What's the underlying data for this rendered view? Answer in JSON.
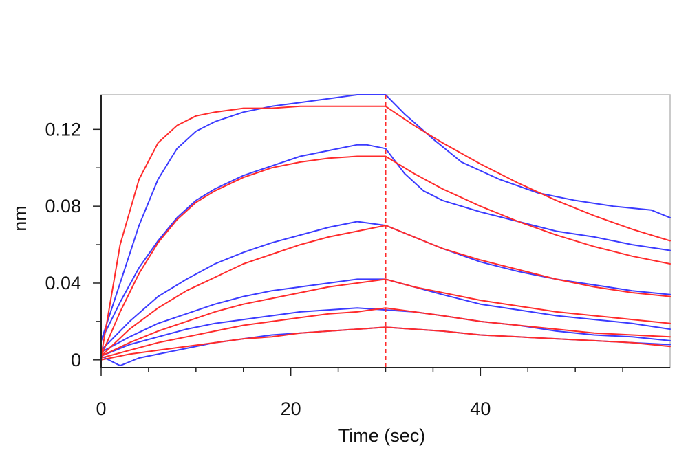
{
  "chart_data": {
    "type": "line",
    "title": "",
    "xlabel": "Time (sec)",
    "ylabel": "nm",
    "xlim": [
      0,
      60
    ],
    "ylim": [
      -0.004,
      0.138
    ],
    "x_ticks": [
      {
        "value": 0,
        "label": "0"
      },
      {
        "value": 20,
        "label": "20"
      },
      {
        "value": 40,
        "label": "40"
      }
    ],
    "y_ticks": [
      {
        "value": 0,
        "label": "0"
      },
      {
        "value": 0.04,
        "label": "0.04"
      },
      {
        "value": 0.08,
        "label": "0.08"
      },
      {
        "value": 0.12,
        "label": "0.12"
      }
    ],
    "x_minor_step": 5,
    "y_minor_step": 0.02,
    "grid": false,
    "dissociation_start": 30,
    "colors": {
      "measured": "#3b3bff",
      "fit": "#ff2b2b",
      "axis": "#222222",
      "frame": "#b8b8b8"
    },
    "series": [
      {
        "kind": "measured",
        "x": [
          0,
          2,
          4,
          6,
          8,
          10,
          12,
          15,
          18,
          21,
          24,
          27,
          28,
          30,
          32,
          35,
          38,
          42,
          46,
          50,
          54,
          58,
          60
        ],
        "y": [
          0.01,
          0.04,
          0.07,
          0.094,
          0.11,
          0.119,
          0.124,
          0.129,
          0.132,
          0.134,
          0.136,
          0.138,
          0.138,
          0.138,
          0.128,
          0.115,
          0.103,
          0.094,
          0.087,
          0.083,
          0.08,
          0.078,
          0.074
        ]
      },
      {
        "kind": "measured",
        "x": [
          0,
          2,
          4,
          6,
          8,
          10,
          12,
          15,
          18,
          21,
          24,
          27,
          28,
          30,
          32,
          34,
          36,
          40,
          44,
          48,
          52,
          56,
          60
        ],
        "y": [
          0.01,
          0.03,
          0.048,
          0.062,
          0.074,
          0.083,
          0.089,
          0.096,
          0.101,
          0.106,
          0.109,
          0.112,
          0.112,
          0.11,
          0.097,
          0.088,
          0.083,
          0.077,
          0.072,
          0.067,
          0.064,
          0.06,
          0.057
        ]
      },
      {
        "kind": "measured",
        "x": [
          0,
          3,
          6,
          9,
          12,
          15,
          18,
          21,
          24,
          27,
          30,
          33,
          36,
          40,
          44,
          48,
          52,
          56,
          60
        ],
        "y": [
          0.005,
          0.02,
          0.033,
          0.042,
          0.05,
          0.056,
          0.061,
          0.065,
          0.069,
          0.072,
          0.07,
          0.064,
          0.058,
          0.051,
          0.046,
          0.042,
          0.039,
          0.036,
          0.034
        ]
      },
      {
        "kind": "measured",
        "x": [
          0,
          3,
          6,
          9,
          12,
          15,
          18,
          21,
          24,
          27,
          30,
          33,
          36,
          40,
          44,
          48,
          52,
          56,
          60
        ],
        "y": [
          0.004,
          0.012,
          0.019,
          0.024,
          0.029,
          0.033,
          0.036,
          0.038,
          0.04,
          0.042,
          0.042,
          0.038,
          0.034,
          0.029,
          0.026,
          0.023,
          0.021,
          0.019,
          0.016
        ]
      },
      {
        "kind": "measured",
        "x": [
          0,
          3,
          6,
          9,
          12,
          15,
          18,
          21,
          24,
          27,
          30,
          33,
          36,
          40,
          44,
          48,
          52,
          56,
          60
        ],
        "y": [
          0.002,
          0.008,
          0.012,
          0.016,
          0.019,
          0.021,
          0.023,
          0.025,
          0.026,
          0.027,
          0.026,
          0.025,
          0.023,
          0.02,
          0.018,
          0.015,
          0.013,
          0.012,
          0.01
        ]
      },
      {
        "kind": "measured",
        "x": [
          0,
          2,
          4,
          6,
          9,
          12,
          15,
          18,
          21,
          24,
          27,
          30,
          33,
          36,
          40,
          44,
          48,
          52,
          56,
          60
        ],
        "y": [
          0.002,
          -0.003,
          0.001,
          0.003,
          0.006,
          0.009,
          0.011,
          0.013,
          0.014,
          0.015,
          0.016,
          0.017,
          0.016,
          0.015,
          0.013,
          0.012,
          0.011,
          0.01,
          0.009,
          0.008
        ]
      },
      {
        "kind": "fit",
        "x": [
          0,
          2,
          4,
          6,
          8,
          10,
          12,
          15,
          18,
          21,
          24,
          27,
          30,
          33,
          36,
          40,
          44,
          48,
          52,
          56,
          60
        ],
        "y": [
          0.002,
          0.06,
          0.094,
          0.113,
          0.122,
          0.127,
          0.129,
          0.131,
          0.131,
          0.132,
          0.132,
          0.132,
          0.132,
          0.122,
          0.113,
          0.102,
          0.092,
          0.083,
          0.075,
          0.068,
          0.062
        ]
      },
      {
        "kind": "fit",
        "x": [
          0,
          2,
          4,
          6,
          8,
          10,
          12,
          15,
          18,
          21,
          24,
          27,
          30,
          33,
          36,
          40,
          44,
          48,
          52,
          56,
          60
        ],
        "y": [
          0.002,
          0.025,
          0.045,
          0.061,
          0.073,
          0.082,
          0.088,
          0.095,
          0.1,
          0.103,
          0.105,
          0.106,
          0.106,
          0.097,
          0.089,
          0.08,
          0.072,
          0.065,
          0.059,
          0.054,
          0.05
        ]
      },
      {
        "kind": "fit",
        "x": [
          0,
          3,
          6,
          9,
          12,
          15,
          18,
          21,
          24,
          27,
          30,
          33,
          36,
          40,
          44,
          48,
          52,
          56,
          60
        ],
        "y": [
          0.002,
          0.016,
          0.027,
          0.036,
          0.043,
          0.05,
          0.055,
          0.06,
          0.064,
          0.067,
          0.07,
          0.064,
          0.058,
          0.052,
          0.047,
          0.042,
          0.038,
          0.035,
          0.033
        ]
      },
      {
        "kind": "fit",
        "x": [
          0,
          3,
          6,
          9,
          12,
          15,
          18,
          21,
          24,
          27,
          30,
          33,
          36,
          40,
          44,
          48,
          52,
          56,
          60
        ],
        "y": [
          0.002,
          0.009,
          0.015,
          0.02,
          0.025,
          0.029,
          0.032,
          0.035,
          0.038,
          0.04,
          0.042,
          0.038,
          0.035,
          0.031,
          0.028,
          0.025,
          0.023,
          0.021,
          0.019
        ]
      },
      {
        "kind": "fit",
        "x": [
          0,
          3,
          6,
          9,
          12,
          15,
          18,
          21,
          24,
          27,
          30,
          33,
          36,
          40,
          44,
          48,
          52,
          56,
          60
        ],
        "y": [
          0.001,
          0.005,
          0.009,
          0.012,
          0.015,
          0.018,
          0.02,
          0.022,
          0.024,
          0.025,
          0.027,
          0.025,
          0.023,
          0.02,
          0.018,
          0.016,
          0.014,
          0.013,
          0.012
        ]
      },
      {
        "kind": "fit",
        "x": [
          0,
          3,
          6,
          9,
          12,
          15,
          18,
          21,
          24,
          27,
          30,
          33,
          36,
          40,
          44,
          48,
          52,
          56,
          60
        ],
        "y": [
          0.0,
          0.003,
          0.005,
          0.007,
          0.009,
          0.011,
          0.012,
          0.014,
          0.015,
          0.016,
          0.017,
          0.016,
          0.015,
          0.013,
          0.012,
          0.011,
          0.01,
          0.009,
          0.007
        ]
      }
    ]
  }
}
